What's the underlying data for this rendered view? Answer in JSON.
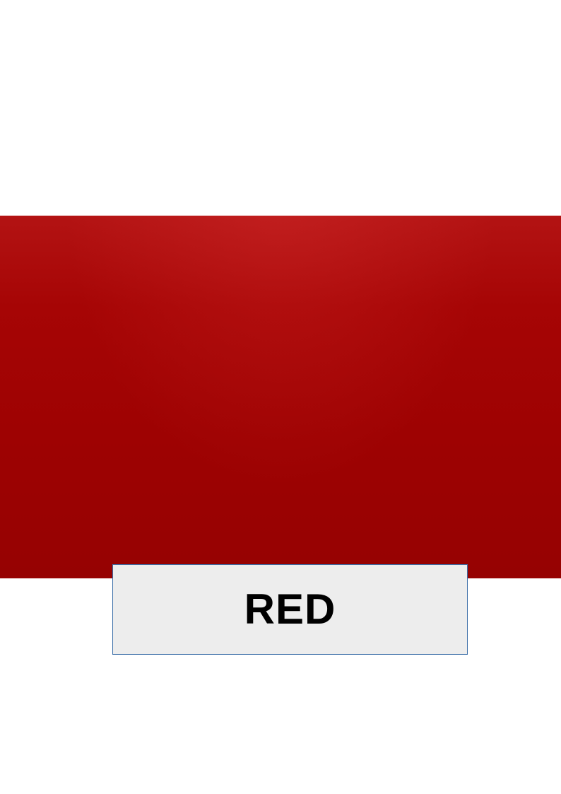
{
  "swatch": {
    "color": "#a00303"
  },
  "label": {
    "text": "RED",
    "background": "#ededed",
    "border_color": "#3b6ea8"
  }
}
